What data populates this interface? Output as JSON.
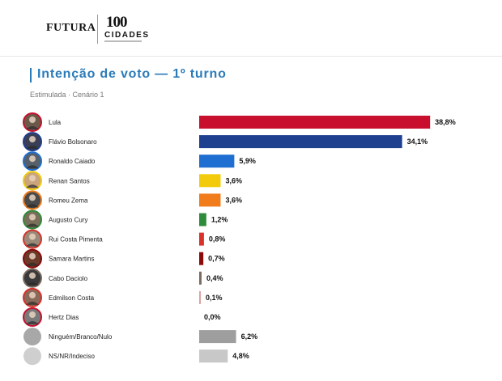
{
  "brand": {
    "futura": "FUTURA",
    "hundred": "100",
    "cidades": "CIDADES"
  },
  "title": "Intenção de voto — 1º turno",
  "subtitle": "Estimulada · Cenário 1",
  "chart_data": {
    "type": "bar",
    "orientation": "horizontal",
    "categories": [
      "Lula",
      "Flávio Bolsonaro",
      "Ronaldo Caiado",
      "Renan Santos",
      "Romeu Zema",
      "Augusto Cury",
      "Rui Costa Pimenta",
      "Samara Martins",
      "Cabo Daciolo",
      "Edmilson Costa",
      "Hertz Dias",
      "Ninguém/Branco/Nulo",
      "NS/NR/Indeciso"
    ],
    "values": [
      38.8,
      34.1,
      5.9,
      3.6,
      3.6,
      1.2,
      0.8,
      0.7,
      0.4,
      0.1,
      0.0,
      6.2,
      4.8
    ],
    "value_labels": [
      "38,8%",
      "34,1%",
      "5,9%",
      "3,6%",
      "3,6%",
      "1,2%",
      "0,8%",
      "0,7%",
      "0,4%",
      "0,1%",
      "0,0%",
      "6,2%",
      "4,8%"
    ],
    "colors": [
      "#c8102e",
      "#1f3f8f",
      "#1e6fd1",
      "#f2cc0c",
      "#f07c1b",
      "#2e8b3a",
      "#d8322a",
      "#8b0a0a",
      "#7a6a60",
      "#d9a3a0",
      "#eeeeee",
      "#9e9e9e",
      "#c8c8c8"
    ],
    "avatar_colors": [
      "#6b5a4a",
      "#3a3f55",
      "#55606a",
      "#caa47a",
      "#4a4a4a",
      "#7a6f5a",
      "#9a8a7a",
      "#6a3a2a",
      "#3a3a3a",
      "#8a6a5a",
      "#7a7a7a",
      "#a8a8a8",
      "#cfcfcf"
    ],
    "avatar_rings": [
      "#c8102e",
      "#1f3f8f",
      "#1e6fd1",
      "#f2cc0c",
      "#f07c1b",
      "#2e8b3a",
      "#d8322a",
      "#8b0a0a",
      "#7a6a60",
      "#d8322a",
      "#c8102e",
      "",
      ""
    ],
    "xlim": [
      0,
      40
    ],
    "grid": false,
    "legend": "none"
  }
}
